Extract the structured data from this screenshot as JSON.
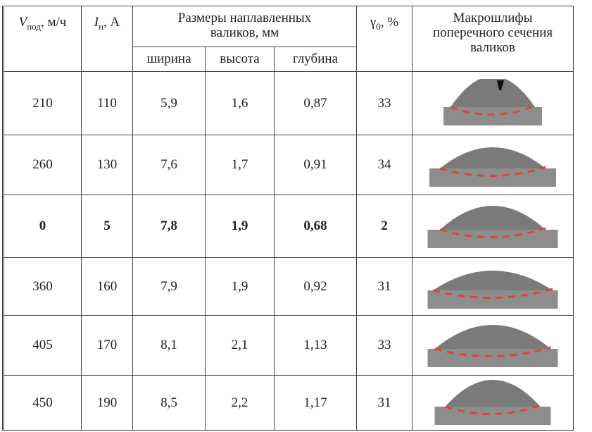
{
  "header": {
    "v_symbol": "V",
    "v_sub": "под",
    "v_unit": ", м/ч",
    "i_symbol": "I",
    "i_sub": "н",
    "i_unit": ", А",
    "sizes": "Размеры наплавленных валиков, мм",
    "width": "ширина",
    "height": "высота",
    "depth": "глубина",
    "gamma_symbol": "γ",
    "gamma_sub": "0",
    "gamma_unit": ", %",
    "macro": "Макрошлифы поперечного сечения валиков"
  },
  "rows": [
    [
      "210",
      "110",
      "5,9",
      "1,6",
      "0,87",
      "33"
    ],
    [
      "260",
      "130",
      "7,6",
      "1,7",
      "0,91",
      "34"
    ],
    [
      "0",
      "5",
      "7,8",
      "1,9",
      "0,68",
      "2"
    ],
    [
      "360",
      "160",
      "7,9",
      "1,9",
      "0,92",
      "31"
    ],
    [
      "405",
      "170",
      "8,1",
      "2,1",
      "1,13",
      "33"
    ],
    [
      "450",
      "190",
      "8,5",
      "2,2",
      "1,17",
      "31"
    ]
  ]
}
